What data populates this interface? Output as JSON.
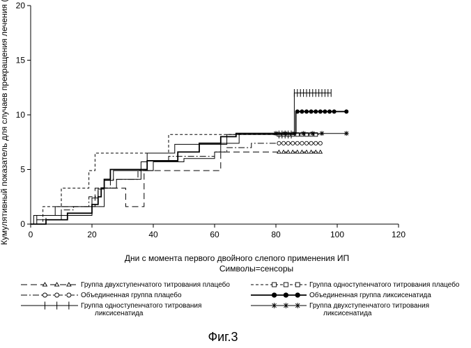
{
  "chart_data": {
    "type": "line",
    "step": true,
    "xlabel": "Дни с момента первого двойного слепого применения ИП",
    "xlabel_sub": "Символы=сенсоры",
    "ylabel": "Кумулятивный показатель для случаев прекращения лечения (%)",
    "xlim": [
      0,
      120
    ],
    "ylim": [
      0,
      20
    ],
    "xticks": [
      0,
      20,
      40,
      60,
      80,
      100,
      120
    ],
    "yticks": [
      0,
      5,
      10,
      15,
      20
    ],
    "series": [
      {
        "name": "Группа двухступенчатого титрования плацебо",
        "style": "long-dash",
        "marker": "triangle",
        "x": [
          0,
          2,
          5,
          10,
          19,
          21,
          24,
          31,
          37,
          38,
          62,
          64,
          95
        ],
        "y": [
          0,
          0.8,
          0.8,
          1.6,
          1.6,
          3.3,
          3.3,
          1.6,
          4.9,
          4.9,
          6.6,
          6.6,
          6.6
        ],
        "censor_x": [
          81,
          82.5,
          84,
          85.5,
          87,
          88.5,
          90,
          91.5,
          93,
          94.5
        ]
      },
      {
        "name": "Группа одноступенчатого титрования плацебо",
        "style": "short-dash",
        "marker": "square",
        "x": [
          0,
          4,
          10,
          19,
          21,
          27,
          45,
          78,
          95
        ],
        "y": [
          0,
          1.6,
          3.3,
          4.9,
          6.5,
          6.5,
          8.2,
          8.2,
          8.2
        ],
        "censor_x": [
          81,
          82.5,
          84,
          85.5,
          87,
          88.5,
          90,
          91.5,
          93
        ]
      },
      {
        "name": "Объединенная группа плацебо",
        "style": "dash-dot",
        "marker": "circle",
        "x": [
          0,
          5,
          10,
          14,
          19,
          22,
          26,
          35,
          40,
          45,
          60,
          64,
          72,
          95
        ],
        "y": [
          0,
          0.8,
          1.3,
          1.6,
          2.5,
          3.3,
          4.1,
          4.9,
          5.7,
          6.2,
          6.6,
          7.0,
          7.4,
          7.4
        ],
        "censor_x": [
          81,
          82.5,
          84,
          85.5,
          87,
          88.5,
          90,
          91.5,
          93,
          94.5
        ]
      },
      {
        "name": "Объединенная группа ликсисенатида",
        "style": "solid-thick",
        "marker": "filled-circle",
        "x": [
          0,
          5,
          12,
          20,
          22,
          23,
          24,
          26,
          36,
          38,
          48,
          55,
          62,
          67,
          70,
          86.5,
          103
        ],
        "y": [
          0,
          0.4,
          1.0,
          1.8,
          2.5,
          3.3,
          4.1,
          5.0,
          5.0,
          5.8,
          6.6,
          7.4,
          8.0,
          8.3,
          8.3,
          10.3,
          10.3
        ],
        "censor_x": [
          87,
          88.5,
          90,
          91.5,
          93,
          94.5,
          96,
          97.5,
          99,
          103
        ]
      },
      {
        "name": "Группа одноступенчатого титрования ликсисенатида",
        "style": "solid-thin",
        "marker": "vertical-bar",
        "x": [
          0,
          1,
          8,
          20,
          22,
          24,
          27,
          36,
          38,
          44,
          47,
          60,
          64,
          68,
          86,
          98
        ],
        "y": [
          0,
          0.8,
          1.6,
          2.4,
          3.2,
          4.0,
          4.9,
          5.7,
          6.5,
          6.5,
          7.3,
          7.3,
          8.2,
          8.2,
          12.0,
          12.0
        ],
        "censor_x": [
          81,
          82,
          83,
          84,
          85,
          86,
          87,
          88,
          89,
          90,
          91,
          92,
          93,
          94,
          95,
          96,
          97,
          98
        ]
      },
      {
        "name": "Группа двухступенчатого титрования ликсисенатида",
        "style": "solid-thin",
        "marker": "asterisk",
        "x": [
          0,
          2,
          10,
          20,
          24,
          28,
          36,
          40,
          50,
          60,
          62,
          68,
          103
        ],
        "y": [
          0,
          0.4,
          0.8,
          1.6,
          3.3,
          4.1,
          4.9,
          5.7,
          6.0,
          6.6,
          7.4,
          8.3,
          8.3
        ],
        "censor_x": [
          80,
          83,
          86,
          89,
          92,
          95,
          103
        ]
      }
    ]
  },
  "legend": [
    {
      "label": "Группа двухступенчатого титрования плацебо",
      "style": "long-dash",
      "marker": "triangle"
    },
    {
      "label": "Группа одноступенчатого титрования плацебо",
      "style": "short-dash",
      "marker": "square"
    },
    {
      "label": "Объединенная группа плацебо",
      "style": "dash-dot",
      "marker": "circle"
    },
    {
      "label": "Объединенная группа ликсисенатида",
      "style": "solid-thick",
      "marker": "filled-circle"
    },
    {
      "label_lines": [
        "Группа одноступенчатого титрования",
        "ликсисенатида"
      ],
      "style": "solid-thin",
      "marker": "vertical-bar"
    },
    {
      "label_lines": [
        "Группа двухступенчатого титрования",
        "ликсисенатида"
      ],
      "style": "solid-thin",
      "marker": "asterisk"
    }
  ],
  "figure_caption": "Фиг.3"
}
